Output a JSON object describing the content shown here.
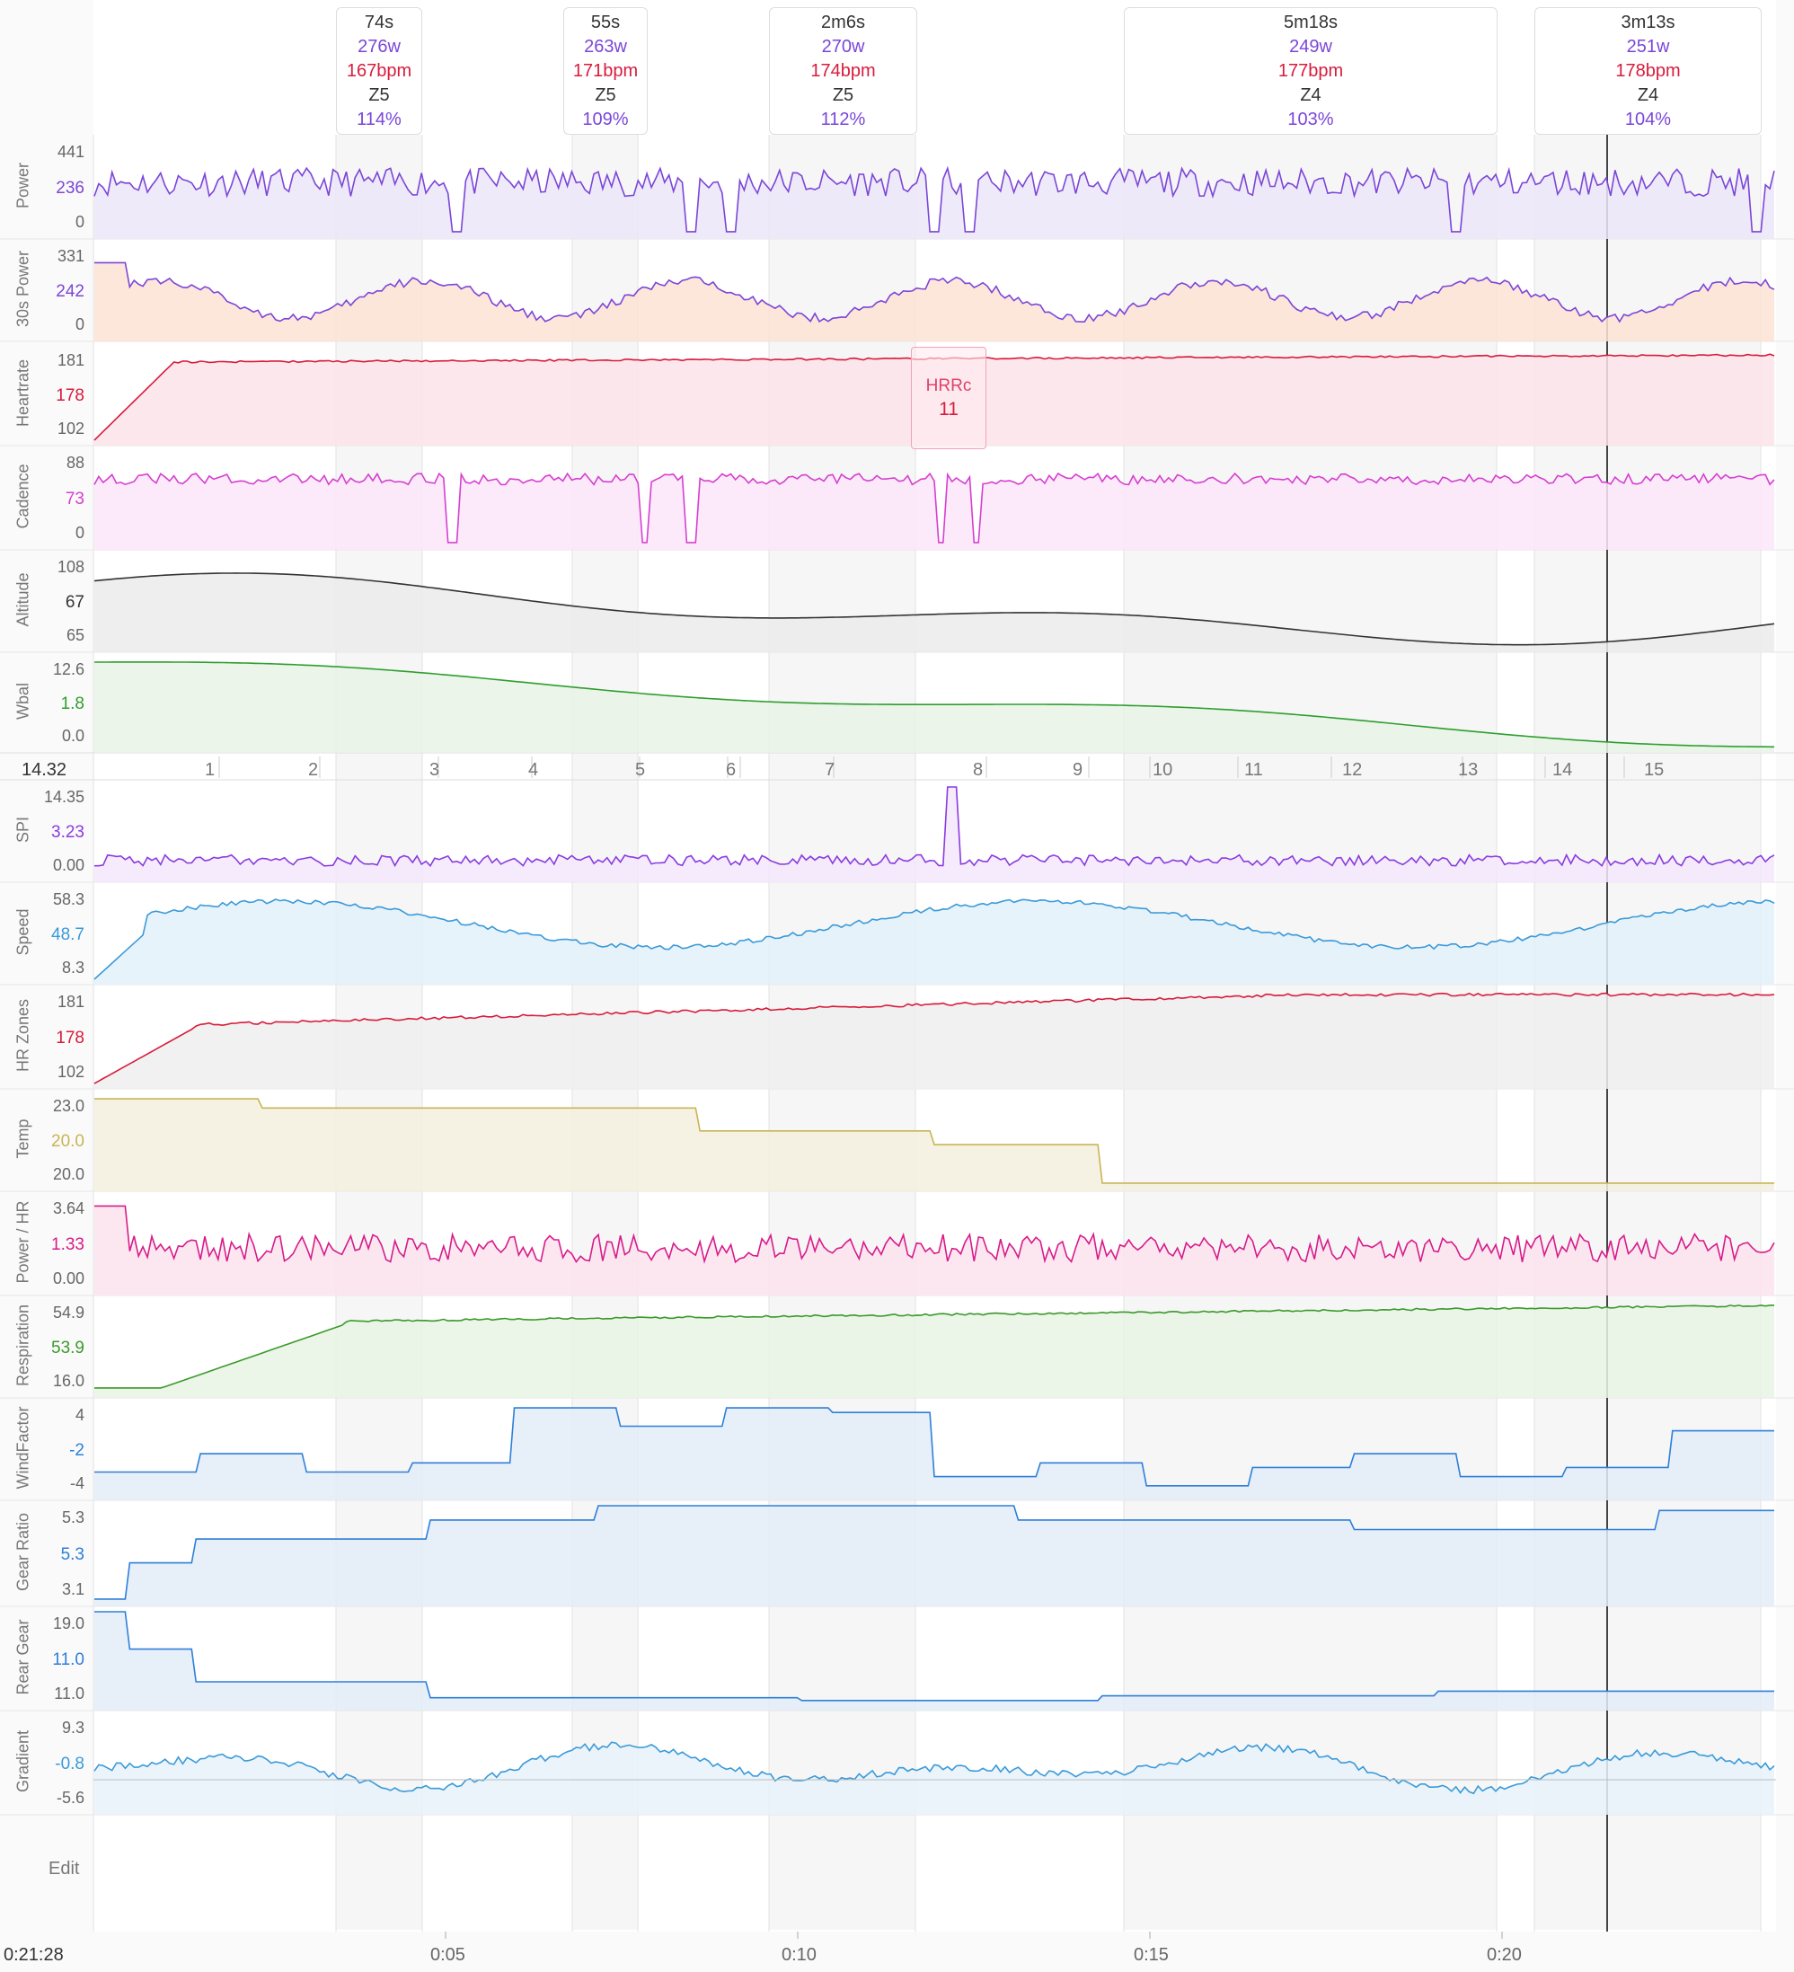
{
  "intervals": [
    {
      "duration": "74s",
      "power": "276w",
      "hr": "167bpm",
      "zone": "Z5",
      "pct": "114%"
    },
    {
      "duration": "55s",
      "power": "263w",
      "hr": "171bpm",
      "zone": "Z5",
      "pct": "109%"
    },
    {
      "duration": "2m6s",
      "power": "270w",
      "hr": "174bpm",
      "zone": "Z5",
      "pct": "112%"
    },
    {
      "duration": "5m18s",
      "power": "249w",
      "hr": "177bpm",
      "zone": "Z4",
      "pct": "103%"
    },
    {
      "duration": "3m13s",
      "power": "251w",
      "hr": "178bpm",
      "zone": "Z4",
      "pct": "104%"
    }
  ],
  "rows": [
    {
      "label": "Power",
      "max": "441",
      "cur": "236",
      "min": "0",
      "color": "#7b46d8"
    },
    {
      "label": "30s Power",
      "max": "331",
      "cur": "242",
      "min": "0",
      "color": "#7b46d8"
    },
    {
      "label": "Heartrate",
      "max": "181",
      "cur": "178",
      "min": "102",
      "color": "#d81b3c"
    },
    {
      "label": "Cadence",
      "max": "88",
      "cur": "73",
      "min": "0",
      "color": "#d63fd0"
    },
    {
      "label": "Altitude",
      "max": "108",
      "cur": "67",
      "min": "65",
      "color": "#333333"
    },
    {
      "label": "Wbal",
      "max": "12.6",
      "cur": "1.8",
      "min": "0.0",
      "color": "#2e9e2e"
    },
    {
      "label": "SPI",
      "max": "14.35",
      "cur": "3.23",
      "min": "0.00",
      "color": "#8a3be0"
    },
    {
      "label": "Speed",
      "max": "58.3",
      "cur": "48.7",
      "min": "8.3",
      "color": "#3a9ad9"
    },
    {
      "label": "HR Zones",
      "max": "181",
      "cur": "178",
      "min": "102",
      "color": "#d81b3c"
    },
    {
      "label": "Temp",
      "max": "23.0",
      "cur": "20.0",
      "min": "20.0",
      "color": "#c9b455"
    },
    {
      "label": "Power / HR",
      "max": "3.64",
      "cur": "1.33",
      "min": "0.00",
      "color": "#d81b8a"
    },
    {
      "label": "Respiration",
      "max": "54.9",
      "cur": "53.9",
      "min": "16.0",
      "color": "#3a9a2a"
    },
    {
      "label": "WindFactor",
      "max": "4",
      "cur": "-2",
      "min": "-4",
      "color": "#2e7fd9"
    },
    {
      "label": "Gear Ratio",
      "max": "5.3",
      "cur": "5.3",
      "min": "3.1",
      "color": "#2e7fd9"
    },
    {
      "label": "Rear Gear",
      "max": "19.0",
      "cur": "11.0",
      "min": "11.0",
      "color": "#2e7fd9"
    },
    {
      "label": "Gradient",
      "max": "9.3",
      "cur": "-0.8",
      "min": "-5.6",
      "color": "#3a9ad9"
    }
  ],
  "laps": {
    "left_value": "14.32",
    "numbers": [
      "1",
      "2",
      "3",
      "4",
      "5",
      "6",
      "7",
      "8",
      "9",
      "10",
      "11",
      "12",
      "13",
      "14",
      "15"
    ]
  },
  "hrrc": {
    "label": "HRRc",
    "value": "11"
  },
  "edit_label": "Edit",
  "time_axis": {
    "cursor_time": "0:21:28",
    "ticks": [
      "0:05",
      "0:10",
      "0:15",
      "0:20"
    ]
  }
}
